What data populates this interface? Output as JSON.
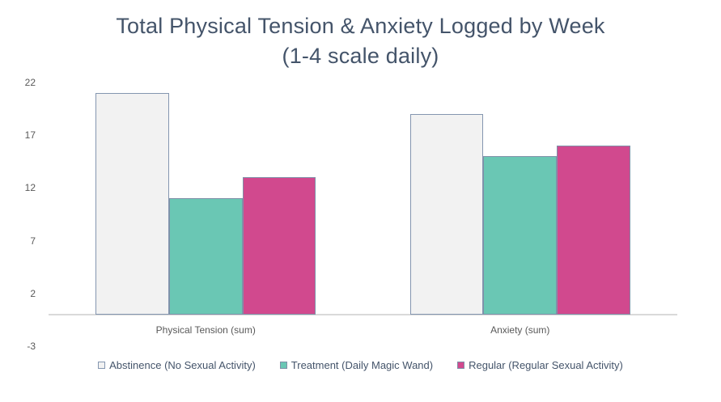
{
  "chart_data": {
    "type": "bar",
    "title": "Total Physical Tension & Anxiety Logged by Week",
    "subtitle": "(1-4 scale daily)",
    "categories": [
      "Physical Tension (sum)",
      "Anxiety (sum)"
    ],
    "series": [
      {
        "name": "Abstinence (No Sexual Activity)",
        "values": [
          21,
          19
        ],
        "fill": "#F2F2F2",
        "border": "#8496B0"
      },
      {
        "name": "Treatment (Daily Magic Wand)",
        "values": [
          11,
          15
        ],
        "fill": "#6AC7B4",
        "border": "#8090A8"
      },
      {
        "name": "Regular (Regular Sexual Activity)",
        "values": [
          13,
          16
        ],
        "fill": "#D1498E",
        "border": "#8090A8"
      }
    ],
    "yticks": [
      22,
      17,
      12,
      7,
      2,
      -3
    ],
    "ylim": [
      -3,
      22
    ],
    "grid": false,
    "legend_position": "bottom",
    "colors": {
      "title": "#44546A",
      "tick_label": "#595959",
      "category_label": "#595959",
      "legend_label": "#44546A",
      "axis_line": "#D9D9D9",
      "background": "#FFFFFF"
    }
  }
}
